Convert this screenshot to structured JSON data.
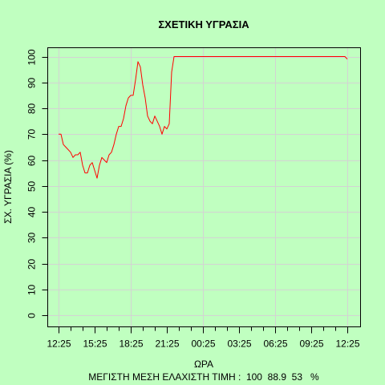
{
  "chart_data": {
    "type": "line",
    "title": "ΣΧΕΤΙΚΗ ΥΓΡΑΣΙΑ",
    "xlabel": "ΩΡΑ",
    "ylabel": "ΣΧ. ΥΓΡΑΣΙΑ (%)",
    "footer": "ΜΕΓΙΣΤΗ ΜΕΣΗ ΕΛΑΧΙΣΤΗ ΤΙΜΗ :  100  88.9  53   %",
    "ylim": [
      -3.5,
      103.5
    ],
    "yticks": [
      0,
      10,
      20,
      30,
      40,
      50,
      60,
      70,
      80,
      90,
      100
    ],
    "xlim": [
      0,
      287
    ],
    "x_unit": "hours from 12:25",
    "xticks": [
      0,
      3,
      6,
      9,
      12,
      15,
      18,
      21,
      24
    ],
    "xtick_labels": [
      "12:25",
      "15:25",
      "18:25",
      "21:25",
      "00:25",
      "03:25",
      "06:25",
      "09:25",
      "12:25"
    ],
    "minor_ticks": true,
    "grid": true,
    "colors": {
      "background": "#c0ffc0",
      "line": "#ff0000",
      "grid": "#d3d3d3",
      "frame": "#000000"
    },
    "series": [
      {
        "x": [
          0,
          0.2,
          0.4,
          0.6,
          1.0,
          1.2,
          1.4,
          1.6,
          1.8,
          2.0,
          2.2,
          2.4,
          2.6,
          2.8,
          3.0,
          3.2,
          3.4,
          3.6,
          3.8,
          4.0,
          4.2,
          4.4,
          4.6,
          4.8,
          5.0,
          5.2,
          5.4,
          5.6,
          5.8,
          6.0,
          6.2,
          6.4,
          6.6,
          6.8,
          7.0,
          7.2,
          7.4,
          7.6,
          7.8,
          8.0,
          8.2,
          8.4,
          8.6,
          8.8,
          9.0,
          9.2,
          9.4,
          9.6,
          9.8,
          10.0,
          23.8,
          24.0
        ],
        "values": [
          70,
          70,
          66,
          65,
          63,
          61,
          62,
          62,
          63,
          58,
          55,
          55,
          58,
          59,
          56,
          53,
          58,
          61,
          60,
          59,
          62,
          63,
          66,
          70,
          73,
          73,
          76,
          81,
          84,
          85,
          85,
          91,
          98,
          96,
          89,
          84,
          77,
          75,
          74,
          77,
          75,
          73,
          70,
          73,
          72,
          74,
          94,
          100,
          100,
          100,
          100,
          99
        ]
      }
    ]
  }
}
